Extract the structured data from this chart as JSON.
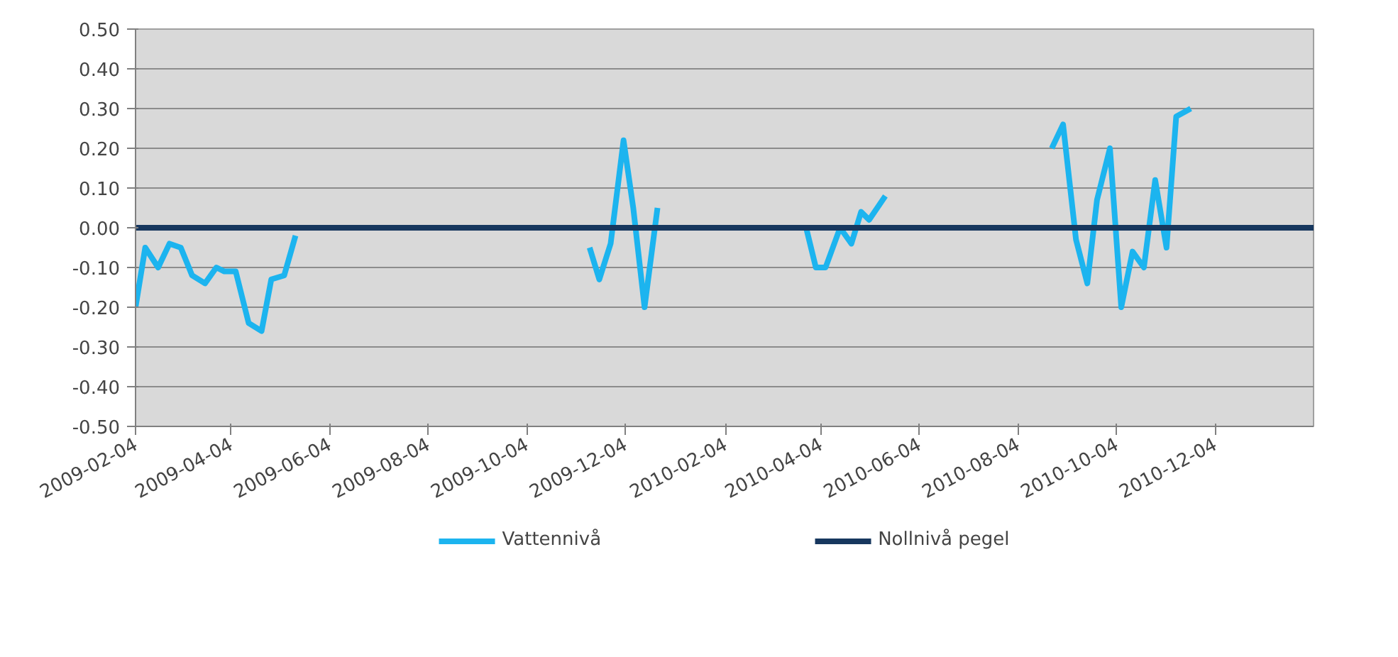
{
  "chart_data": {
    "type": "line",
    "x": [
      "2009-02-04",
      "2009-02-10",
      "2009-02-18",
      "2009-02-25",
      "2009-03-04",
      "2009-03-11",
      "2009-03-19",
      "2009-03-26",
      "2009-03-31",
      "2009-04-07",
      "2009-04-15",
      "2009-04-23",
      "2009-04-29",
      "2009-05-07",
      "2009-05-14",
      "2009-08-01",
      "2009-11-12",
      "2009-11-18",
      "2009-11-25",
      "2009-12-03",
      "2009-12-09",
      "2009-12-16",
      "2009-12-24",
      "2010-02-01",
      "2010-03-26",
      "2010-04-01",
      "2010-04-07",
      "2010-04-16",
      "2010-04-23",
      "2010-04-29",
      "2010-05-04",
      "2010-05-14",
      "2010-07-01",
      "2010-08-25",
      "2010-09-01",
      "2010-09-09",
      "2010-09-16",
      "2010-09-22",
      "2010-09-30",
      "2010-10-07",
      "2010-10-14",
      "2010-10-21",
      "2010-10-28",
      "2010-11-04",
      "2010-11-10",
      "2010-11-19"
    ],
    "series": [
      {
        "name": "Vattennivå",
        "color": "#1cb4ef",
        "values": [
          -0.2,
          -0.05,
          -0.1,
          -0.04,
          -0.05,
          -0.12,
          -0.14,
          -0.1,
          -0.11,
          -0.11,
          -0.24,
          -0.26,
          -0.13,
          -0.12,
          -0.02,
          null,
          -0.05,
          -0.13,
          -0.04,
          0.22,
          0.05,
          -0.2,
          0.05,
          null,
          0.0,
          -0.1,
          -0.1,
          0.0,
          -0.04,
          0.04,
          0.02,
          0.08,
          null,
          0.2,
          0.26,
          -0.03,
          -0.14,
          0.07,
          0.2,
          -0.2,
          -0.06,
          -0.1,
          0.12,
          -0.05,
          0.28,
          0.3
        ]
      },
      {
        "name": "Nollnivå pegel",
        "color": "#17375e",
        "x": [
          "2009-02-04",
          "2011-02-03"
        ],
        "values": [
          0,
          0
        ]
      }
    ],
    "xlim": [
      "2009-02-04",
      "2011-02-03"
    ],
    "xticks": [
      "2009-02-04",
      "2009-04-04",
      "2009-06-04",
      "2009-08-04",
      "2009-10-04",
      "2009-12-04",
      "2010-02-04",
      "2010-04-04",
      "2010-06-04",
      "2010-08-04",
      "2010-10-04",
      "2010-12-04"
    ],
    "ylim": [
      -0.5,
      0.5
    ],
    "yticks": [
      {
        "value": -0.5,
        "label": "-0.50"
      },
      {
        "value": -0.4,
        "label": "-0.40"
      },
      {
        "value": -0.3,
        "label": "-0.30"
      },
      {
        "value": -0.2,
        "label": "-0.20"
      },
      {
        "value": -0.1,
        "label": "-0.10"
      },
      {
        "value": 0,
        "label": "0.00"
      },
      {
        "value": 0.1,
        "label": "0.10"
      },
      {
        "value": 0.2,
        "label": "0.20"
      },
      {
        "value": 0.3,
        "label": "0.30"
      },
      {
        "value": 0.4,
        "label": "0.40"
      },
      {
        "value": 0.5,
        "label": "0.50"
      }
    ],
    "grid": "y",
    "legend": "bottom",
    "marker": "none",
    "line_style": "solid"
  }
}
